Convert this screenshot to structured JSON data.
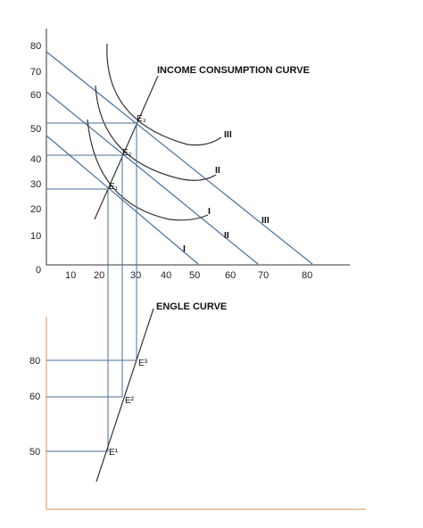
{
  "chart_data": [
    {
      "type": "diagram",
      "title": "INCOME CONSUMPTION CURVE",
      "x_ticks": [
        "10",
        "20",
        "30",
        "40",
        "50",
        "60",
        "70",
        "80"
      ],
      "y_ticks": [
        "80",
        "70",
        "60",
        "50",
        "40",
        "30",
        "20",
        "10"
      ],
      "origin_label": "0",
      "budget_lines": [
        {
          "name": "I",
          "y_intercept": 52,
          "x_intercept": 50
        },
        {
          "name": "II",
          "y_intercept": 62,
          "x_intercept": 68
        },
        {
          "name": "III",
          "y_intercept": 78,
          "x_intercept": 80
        }
      ],
      "indifference_curve_labels": [
        "I",
        "II",
        "III"
      ],
      "equilibria": [
        {
          "name": "E₁",
          "x": 21,
          "y": 28
        },
        {
          "name": "E₂",
          "x": 26,
          "y": 41
        },
        {
          "name": "E₃",
          "x": 30,
          "y": 52
        }
      ]
    },
    {
      "type": "diagram",
      "title": "ENGLE CURVE",
      "y_ticks": [
        "80",
        "60",
        "50"
      ],
      "points": [
        {
          "name": "E³",
          "y": 80
        },
        {
          "name": "E²",
          "y": 60
        },
        {
          "name": "E¹",
          "y": 50
        }
      ]
    }
  ]
}
